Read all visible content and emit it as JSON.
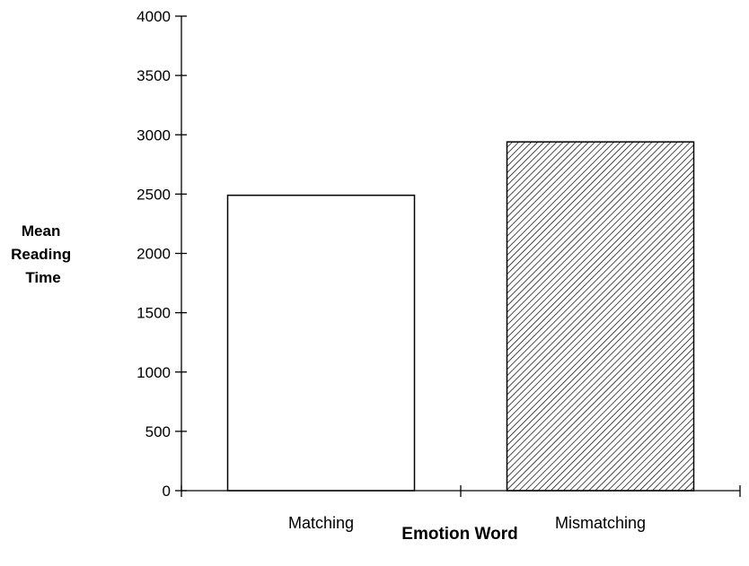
{
  "chart_data": {
    "type": "bar",
    "title": "",
    "categories": [
      "Matching",
      "Mismatching"
    ],
    "values": [
      2490,
      2940
    ],
    "xlabel": "Emotion Word",
    "ylabel_lines": [
      "Mean",
      "Reading",
      "Time"
    ],
    "ylim": [
      0,
      4000
    ],
    "yticks": [
      0,
      500,
      1000,
      1500,
      2000,
      2500,
      3000,
      3500,
      4000
    ],
    "bar_fills": [
      "solid-white",
      "diagonal-hatch"
    ],
    "grid": false,
    "legend": "none",
    "colors": {
      "axis": "#000000",
      "bar_outline": "#000000",
      "bar_fill": "#ffffff",
      "hatch": "#000000"
    }
  }
}
